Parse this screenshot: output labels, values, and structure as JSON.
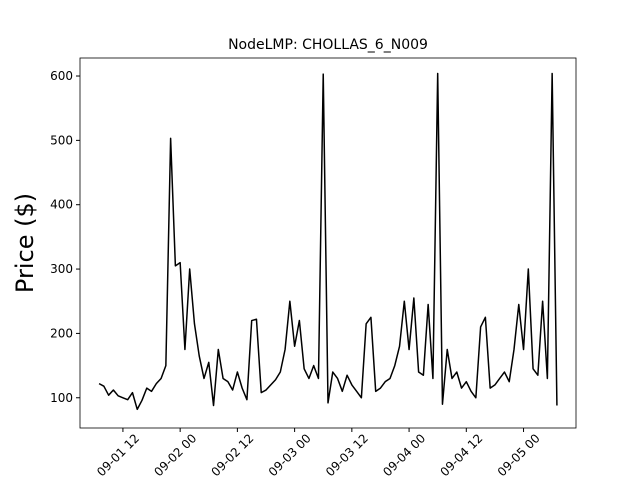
{
  "chart_data": {
    "type": "line",
    "title": "NodeLMP: CHOLLAS_6_N009",
    "y_label": "Price ($)",
    "x": [
      "09-01 07",
      "09-01 08",
      "09-01 09",
      "09-01 10",
      "09-01 11",
      "09-01 12",
      "09-01 13",
      "09-01 14",
      "09-01 15",
      "09-01 16",
      "09-01 17",
      "09-01 18",
      "09-01 19",
      "09-01 20",
      "09-01 21",
      "09-01 22",
      "09-01 23",
      "09-02 00",
      "09-02 01",
      "09-02 02",
      "09-02 03",
      "09-02 04",
      "09-02 05",
      "09-02 06",
      "09-02 07",
      "09-02 08",
      "09-02 09",
      "09-02 10",
      "09-02 11",
      "09-02 12",
      "09-02 13",
      "09-02 14",
      "09-02 15",
      "09-02 16",
      "09-02 17",
      "09-02 18",
      "09-02 19",
      "09-02 20",
      "09-02 21",
      "09-02 22",
      "09-02 23",
      "09-03 00",
      "09-03 01",
      "09-03 02",
      "09-03 03",
      "09-03 04",
      "09-03 05",
      "09-03 06",
      "09-03 07",
      "09-03 08",
      "09-03 09",
      "09-03 10",
      "09-03 11",
      "09-03 12",
      "09-03 13",
      "09-03 14",
      "09-03 15",
      "09-03 16",
      "09-03 17",
      "09-03 18",
      "09-03 19",
      "09-03 20",
      "09-03 21",
      "09-03 22",
      "09-03 23",
      "09-04 00",
      "09-04 01",
      "09-04 02",
      "09-04 03",
      "09-04 04",
      "09-04 05",
      "09-04 06",
      "09-04 07",
      "09-04 08",
      "09-04 09",
      "09-04 10",
      "09-04 11",
      "09-04 12",
      "09-04 13",
      "09-04 14",
      "09-04 15",
      "09-04 16",
      "09-04 17",
      "09-04 18",
      "09-04 19",
      "09-04 20",
      "09-04 21",
      "09-04 22",
      "09-04 23",
      "09-05 00",
      "09-05 01",
      "09-05 02",
      "09-05 03",
      "09-05 04",
      "09-05 05",
      "09-05 06",
      "09-05 07"
    ],
    "series": [
      {
        "color": "#000000",
        "values": [
          122,
          118,
          104,
          112,
          103,
          100,
          97,
          108,
          82,
          96,
          115,
          110,
          122,
          130,
          150,
          503,
          305,
          310,
          175,
          300,
          215,
          165,
          130,
          155,
          88,
          175,
          130,
          125,
          112,
          140,
          115,
          97,
          220,
          222,
          108,
          112,
          120,
          128,
          140,
          175,
          250,
          180,
          220,
          145,
          130,
          150,
          130,
          603,
          92,
          140,
          130,
          110,
          135,
          120,
          110,
          100,
          215,
          225,
          110,
          115,
          125,
          130,
          150,
          180,
          250,
          175,
          255,
          140,
          135,
          245,
          130,
          604,
          90,
          175,
          130,
          140,
          115,
          125,
          110,
          100,
          210,
          225,
          115,
          120,
          130,
          140,
          125,
          175,
          245,
          175,
          300,
          145,
          135,
          250,
          130,
          604,
          88
        ]
      }
    ],
    "xlim": [
      "09-01 03",
      "09-05 11"
    ],
    "xticks": [
      "09-01 12",
      "09-02 00",
      "09-02 12",
      "09-03 00",
      "09-03 12",
      "09-04 00",
      "09-04 12",
      "09-05 00"
    ],
    "ylim": [
      53,
      628
    ],
    "yticks": [
      100,
      200,
      300,
      400,
      500,
      600
    ]
  }
}
